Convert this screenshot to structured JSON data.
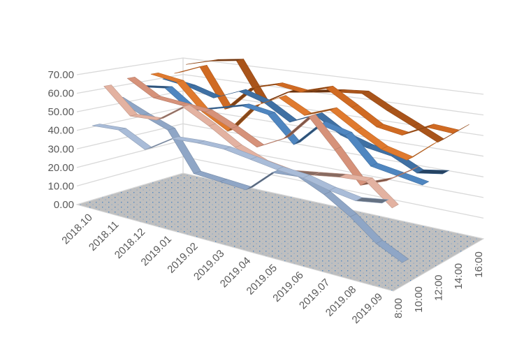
{
  "chart_data": {
    "type": "line",
    "variant": "3d-line",
    "title": "",
    "xlabel": "",
    "ylabel": "",
    "ylim": [
      0,
      70
    ],
    "y_ticks": [
      "0.00",
      "10.00",
      "20.00",
      "30.00",
      "40.00",
      "50.00",
      "60.00",
      "70.00"
    ],
    "grid": true,
    "legend": "none",
    "floor_color": "#BFBFBF",
    "categories": [
      "2018.10",
      "2018.11",
      "2018.12",
      "2019.01",
      "2019.02",
      "2019.03",
      "2019.04",
      "2019.05",
      "2019.06",
      "2019.07",
      "2019.08",
      "2019.09"
    ],
    "series": [
      {
        "name": "8:00",
        "color": "#A9BCD8",
        "values": [
          44,
          45,
          38,
          47,
          48,
          48,
          46,
          44,
          43,
          40,
          38,
          40
        ]
      },
      {
        "color": "#E3B2A1",
        "values": [
          64,
          51,
          52,
          62,
          55,
          47,
          42,
          40,
          42,
          44,
          45,
          35
        ]
      },
      {
        "name": "10:00",
        "color": "#8FA6C6",
        "values": [
          56,
          50,
          45,
          25,
          24,
          23,
          35,
          36,
          30,
          22,
          12,
          6
        ]
      },
      {
        "color": "#D6927A",
        "values": [
          66,
          58,
          57,
          56,
          50,
          43,
          50,
          64,
          50,
          35,
          40,
          48
        ]
      },
      {
        "name": "12:00",
        "color": "#4F86C0",
        "values": [
          60,
          62,
          52,
          56,
          60,
          58,
          45,
          58,
          55,
          42,
          40,
          38
        ]
      },
      {
        "color": "#E07A2E",
        "values": [
          66,
          64,
          50,
          42,
          58,
          65,
          58,
          63,
          55,
          48,
          45,
          55
        ]
      },
      {
        "name": "14:00",
        "color": "#3F70A3",
        "values": [
          62,
          60,
          56,
          62,
          58,
          50,
          56,
          48,
          44,
          42,
          36,
          38
        ]
      },
      {
        "color": "#D06A22",
        "values": [
          64,
          70,
          48,
          62,
          66,
          64,
          68,
          60,
          52,
          50,
          56,
          55
        ]
      },
      {
        "name": "16:00",
        "color": "#A9541A",
        "values": [
          68,
          72,
          74,
          52,
          60,
          62,
          64,
          65,
          58,
          52,
          46,
          55
        ]
      }
    ]
  }
}
